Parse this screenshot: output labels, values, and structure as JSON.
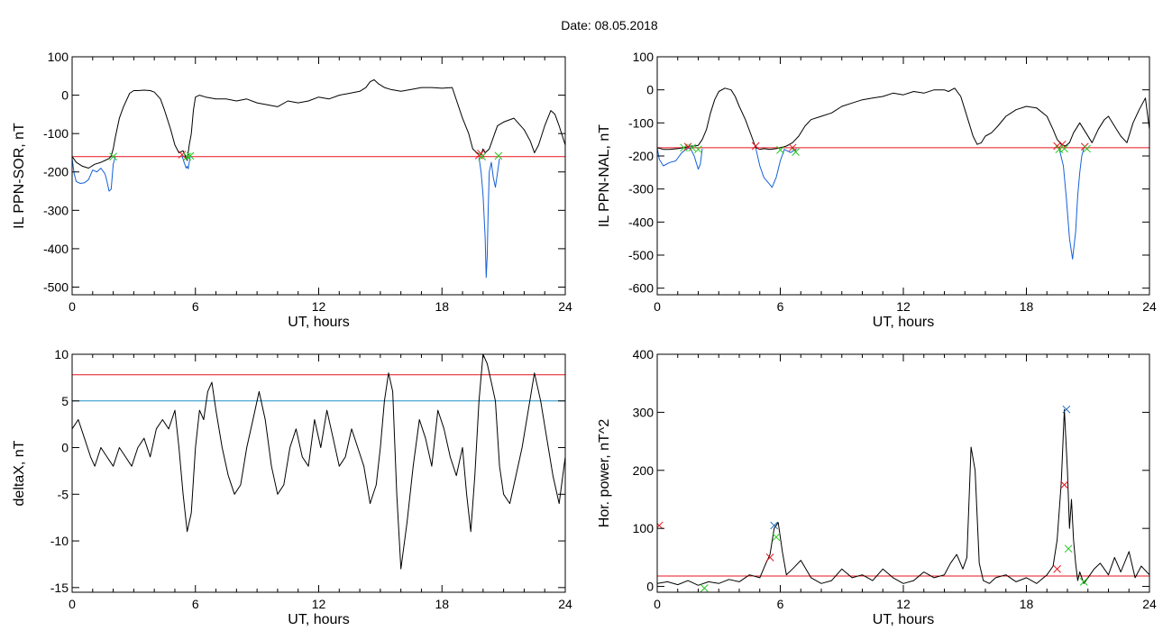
{
  "figure": {
    "date_text": "Date:  08.05.2018"
  },
  "chart_data": [
    {
      "id": "tl",
      "type": "line",
      "xlabel": "UT, hours",
      "ylabel": "IL PPN-SOR, nT",
      "xlim": [
        0,
        24
      ],
      "ylim": [
        -520,
        100
      ],
      "xticks": [
        0,
        6,
        12,
        18,
        24
      ],
      "yticks": [
        100,
        0,
        -100,
        -200,
        -300,
        -400,
        -500
      ],
      "hlines": [
        {
          "y": -160,
          "color": "#e8141e"
        }
      ],
      "series": [
        {
          "color": "#000000",
          "x": [
            0,
            0.2,
            0.5,
            0.8,
            1.1,
            1.4,
            1.6,
            1.8,
            1.9,
            2.0,
            2.1,
            2.3,
            2.5,
            2.8,
            3.0,
            3.2,
            3.5,
            3.8,
            4.0,
            4.3,
            4.5,
            4.8,
            5.0,
            5.2,
            5.4,
            5.6,
            5.7,
            5.8,
            5.9,
            6.0,
            6.2,
            6.5,
            7.0,
            7.5,
            8.0,
            8.5,
            9.0,
            9.5,
            10.0,
            10.5,
            11.0,
            11.5,
            12.0,
            12.5,
            13.0,
            13.5,
            14.0,
            14.3,
            14.5,
            14.7,
            14.9,
            15.2,
            15.5,
            16.0,
            16.5,
            17.0,
            17.5,
            18.0,
            18.5,
            19.0,
            19.3,
            19.5,
            19.7,
            19.9,
            20.0,
            20.1,
            20.3,
            20.5,
            20.7,
            21.0,
            21.5,
            22.0,
            22.3,
            22.5,
            22.7,
            23.0,
            23.3,
            23.5,
            23.7,
            24.0
          ],
          "y": [
            -160,
            -175,
            -185,
            -190,
            -180,
            -175,
            -170,
            -165,
            -158,
            -140,
            -110,
            -60,
            -30,
            5,
            12,
            12,
            13,
            12,
            8,
            -10,
            -40,
            -90,
            -130,
            -150,
            -145,
            -170,
            -130,
            -100,
            -40,
            -5,
            0,
            -5,
            -10,
            -10,
            -15,
            -10,
            -20,
            -25,
            -30,
            -15,
            -20,
            -15,
            -5,
            -10,
            0,
            5,
            10,
            20,
            35,
            40,
            30,
            20,
            15,
            10,
            15,
            20,
            20,
            18,
            20,
            -60,
            -100,
            -140,
            -150,
            -155,
            -140,
            -150,
            -140,
            -110,
            -80,
            -70,
            -60,
            -90,
            -120,
            -150,
            -130,
            -80,
            -40,
            -50,
            -80,
            -130
          ]
        },
        {
          "color": "#1560d8",
          "x": [
            0,
            0.1,
            0.2,
            0.4,
            0.6,
            0.8,
            1.0,
            1.2,
            1.4,
            1.6,
            1.7,
            1.8,
            1.9,
            2.0,
            2.1
          ],
          "y": [
            -165,
            -205,
            -225,
            -230,
            -228,
            -220,
            -195,
            -200,
            -190,
            -205,
            -225,
            -250,
            -245,
            -180,
            -160
          ]
        },
        {
          "color": "#1560d8",
          "x": [
            5.35,
            5.45,
            5.55,
            5.6,
            5.65,
            5.7,
            5.75
          ],
          "y": [
            -158,
            -175,
            -190,
            -185,
            -192,
            -175,
            -158
          ]
        },
        {
          "color": "#1560d8",
          "x": [
            19.8,
            19.9,
            20.0,
            20.1,
            20.15,
            20.2,
            20.25,
            20.3,
            20.4,
            20.5,
            20.6,
            20.8
          ],
          "y": [
            -162,
            -200,
            -260,
            -370,
            -475,
            -420,
            -300,
            -200,
            -175,
            -215,
            -240,
            -165
          ]
        }
      ],
      "markers": [
        {
          "x": 2.0,
          "y": -160,
          "color": "#22c820"
        },
        {
          "x": 5.35,
          "y": -155,
          "color": "#e8141e"
        },
        {
          "x": 5.6,
          "y": -160,
          "color": "#22c820"
        },
        {
          "x": 5.75,
          "y": -158,
          "color": "#22c820"
        },
        {
          "x": 19.8,
          "y": -157,
          "color": "#e8141e"
        },
        {
          "x": 19.9,
          "y": -152,
          "color": "#e8141e"
        },
        {
          "x": 19.95,
          "y": -160,
          "color": "#22c820"
        },
        {
          "x": 20.75,
          "y": -158,
          "color": "#22c820"
        }
      ]
    },
    {
      "id": "tr",
      "type": "line",
      "xlabel": "UT, hours",
      "ylabel": "IL PPN-NAL, nT",
      "xlim": [
        0,
        24
      ],
      "ylim": [
        -620,
        100
      ],
      "xticks": [
        0,
        6,
        12,
        18,
        24
      ],
      "yticks": [
        100,
        0,
        -100,
        -200,
        -300,
        -400,
        -500,
        -600
      ],
      "hlines": [
        {
          "y": -175,
          "color": "#e8141e"
        }
      ],
      "series": [
        {
          "color": "#000000",
          "x": [
            0,
            0.3,
            0.6,
            1.0,
            1.3,
            1.6,
            1.8,
            2.0,
            2.2,
            2.4,
            2.6,
            2.8,
            3.0,
            3.3,
            3.6,
            3.8,
            4.0,
            4.3,
            4.6,
            4.8,
            5.0,
            5.2,
            5.5,
            5.8,
            6.0,
            6.3,
            6.6,
            6.9,
            7.2,
            7.5,
            8.0,
            8.5,
            9.0,
            9.5,
            10.0,
            10.5,
            11.0,
            11.5,
            12.0,
            12.5,
            13.0,
            13.5,
            14.0,
            14.2,
            14.5,
            14.8,
            15.0,
            15.2,
            15.4,
            15.6,
            15.8,
            16.0,
            16.3,
            16.6,
            17.0,
            17.5,
            18.0,
            18.5,
            19.0,
            19.3,
            19.5,
            19.7,
            19.9,
            20.1,
            20.3,
            20.6,
            20.9,
            21.2,
            21.5,
            21.8,
            22.0,
            22.3,
            22.6,
            22.9,
            23.2,
            23.5,
            23.8,
            24.0
          ],
          "y": [
            -175,
            -180,
            -180,
            -178,
            -175,
            -170,
            -170,
            -168,
            -150,
            -120,
            -70,
            -30,
            -5,
            5,
            0,
            -20,
            -50,
            -90,
            -140,
            -175,
            -180,
            -178,
            -180,
            -178,
            -175,
            -170,
            -160,
            -140,
            -110,
            -90,
            -80,
            -70,
            -50,
            -40,
            -30,
            -25,
            -20,
            -10,
            -15,
            -5,
            -10,
            0,
            0,
            -5,
            5,
            -20,
            -60,
            -100,
            -140,
            -165,
            -160,
            -140,
            -130,
            -110,
            -80,
            -60,
            -50,
            -55,
            -80,
            -120,
            -150,
            -165,
            -170,
            -160,
            -130,
            -100,
            -130,
            -160,
            -120,
            -90,
            -80,
            -110,
            -140,
            -160,
            -100,
            -60,
            -25,
            -120
          ]
        },
        {
          "color": "#1560d8",
          "x": [
            0,
            0.1,
            0.3,
            0.6,
            0.9,
            1.2,
            1.4,
            1.6,
            1.8,
            2.0,
            2.1,
            2.2
          ],
          "y": [
            -175,
            -210,
            -230,
            -220,
            -215,
            -190,
            -180,
            -175,
            -200,
            -240,
            -225,
            -178
          ]
        },
        {
          "color": "#1560d8",
          "x": [
            4.8,
            5.0,
            5.2,
            5.4,
            5.6,
            5.8,
            6.0,
            6.2,
            6.5,
            6.8
          ],
          "y": [
            -175,
            -230,
            -265,
            -280,
            -295,
            -265,
            -215,
            -180,
            -190,
            -178
          ]
        },
        {
          "color": "#1560d8",
          "x": [
            19.6,
            19.8,
            19.95,
            20.1,
            20.25,
            20.4,
            20.5,
            20.6,
            20.7,
            20.8
          ],
          "y": [
            -178,
            -230,
            -330,
            -450,
            -512,
            -430,
            -320,
            -250,
            -200,
            -178
          ]
        }
      ],
      "markers": [
        {
          "x": 1.3,
          "y": -175,
          "color": "#22c820"
        },
        {
          "x": 1.5,
          "y": -172,
          "color": "#e8141e"
        },
        {
          "x": 1.7,
          "y": -175,
          "color": "#22c820"
        },
        {
          "x": 2.0,
          "y": -180,
          "color": "#22c820"
        },
        {
          "x": 4.8,
          "y": -170,
          "color": "#e8141e"
        },
        {
          "x": 6.0,
          "y": -182,
          "color": "#22c820"
        },
        {
          "x": 6.6,
          "y": -175,
          "color": "#e8141e"
        },
        {
          "x": 6.75,
          "y": -188,
          "color": "#22c820"
        },
        {
          "x": 19.5,
          "y": -170,
          "color": "#e8141e"
        },
        {
          "x": 19.6,
          "y": -180,
          "color": "#22c820"
        },
        {
          "x": 19.75,
          "y": -165,
          "color": "#e8141e"
        },
        {
          "x": 19.85,
          "y": -178,
          "color": "#22c820"
        },
        {
          "x": 20.85,
          "y": -172,
          "color": "#e8141e"
        },
        {
          "x": 20.95,
          "y": -178,
          "color": "#22c820"
        }
      ]
    },
    {
      "id": "bl",
      "type": "line",
      "xlabel": "UT, hours",
      "ylabel": "deltaX, nT",
      "xlim": [
        0,
        24
      ],
      "ylim": [
        -15.5,
        10
      ],
      "xticks": [
        0,
        6,
        12,
        18,
        24
      ],
      "yticks": [
        10,
        5,
        0,
        -5,
        -10,
        -15
      ],
      "hlines": [
        {
          "y": 7.8,
          "color": "#e8141e"
        },
        {
          "y": 5.0,
          "color": "#1a90c8"
        }
      ],
      "series": [
        {
          "color": "#000000",
          "x": [
            0,
            0.3,
            0.6,
            0.9,
            1.1,
            1.4,
            1.7,
            2.0,
            2.3,
            2.6,
            2.9,
            3.2,
            3.5,
            3.8,
            4.1,
            4.4,
            4.7,
            5.0,
            5.2,
            5.4,
            5.6,
            5.8,
            6.0,
            6.2,
            6.4,
            6.6,
            6.8,
            7.0,
            7.3,
            7.6,
            7.9,
            8.2,
            8.5,
            8.8,
            9.1,
            9.4,
            9.7,
            10.0,
            10.3,
            10.6,
            10.9,
            11.2,
            11.5,
            11.8,
            12.1,
            12.4,
            12.7,
            13.0,
            13.3,
            13.6,
            13.9,
            14.2,
            14.5,
            14.8,
            15.0,
            15.2,
            15.4,
            15.6,
            15.8,
            16.0,
            16.3,
            16.6,
            16.9,
            17.2,
            17.5,
            17.8,
            18.1,
            18.4,
            18.7,
            19.0,
            19.2,
            19.4,
            19.6,
            19.8,
            20.0,
            20.2,
            20.4,
            20.6,
            20.8,
            21.0,
            21.3,
            21.6,
            21.9,
            22.2,
            22.5,
            22.8,
            23.1,
            23.4,
            23.7,
            24.0
          ],
          "y": [
            2,
            3,
            1,
            -1,
            -2,
            0,
            -1,
            -2,
            0,
            -1,
            -2,
            0,
            1,
            -1,
            2,
            3,
            2,
            4,
            0,
            -5,
            -9,
            -7,
            0,
            4,
            3,
            6,
            7,
            4,
            0,
            -3,
            -5,
            -4,
            0,
            3,
            6,
            3,
            -2,
            -5,
            -4,
            0,
            2,
            -1,
            -2,
            3,
            0,
            4,
            1,
            -2,
            -1,
            2,
            0,
            -2,
            -6,
            -4,
            0,
            5,
            8,
            6,
            -5,
            -13,
            -8,
            -2,
            3,
            1,
            -2,
            4,
            2,
            -1,
            -3,
            0,
            -5,
            -9,
            -3,
            5,
            10,
            9,
            7,
            5,
            -2,
            -5,
            -6,
            -3,
            0,
            4,
            8,
            5,
            1,
            -3,
            -6,
            -1
          ]
        }
      ],
      "markers": []
    },
    {
      "id": "br",
      "type": "line",
      "xlabel": "UT, hours",
      "ylabel": "Hor. power, nT^2",
      "xlim": [
        0,
        24
      ],
      "ylim": [
        -10,
        400
      ],
      "xticks": [
        0,
        6,
        12,
        18,
        24
      ],
      "yticks": [
        400,
        300,
        200,
        100,
        0
      ],
      "hlines": [
        {
          "y": 18,
          "color": "#e8141e"
        }
      ],
      "series": [
        {
          "color": "#000000",
          "x": [
            0,
            0.5,
            1.0,
            1.5,
            2.0,
            2.5,
            3.0,
            3.5,
            4.0,
            4.5,
            5.0,
            5.3,
            5.5,
            5.7,
            5.9,
            6.1,
            6.3,
            6.6,
            7.0,
            7.5,
            8.0,
            8.5,
            9.0,
            9.5,
            10.0,
            10.5,
            11.0,
            11.5,
            12.0,
            12.5,
            13.0,
            13.5,
            14.0,
            14.3,
            14.6,
            14.9,
            15.1,
            15.3,
            15.5,
            15.7,
            15.9,
            16.2,
            16.5,
            17.0,
            17.5,
            18.0,
            18.5,
            19.0,
            19.3,
            19.5,
            19.7,
            19.85,
            20.0,
            20.1,
            20.2,
            20.3,
            20.4,
            20.5,
            20.6,
            20.8,
            21.0,
            21.3,
            21.6,
            22.0,
            22.3,
            22.6,
            23.0,
            23.3,
            23.6,
            24.0
          ],
          "y": [
            5,
            8,
            3,
            10,
            2,
            8,
            5,
            12,
            8,
            20,
            15,
            40,
            55,
            100,
            110,
            60,
            20,
            30,
            45,
            15,
            5,
            10,
            30,
            15,
            20,
            10,
            30,
            15,
            5,
            10,
            25,
            15,
            20,
            40,
            55,
            30,
            50,
            240,
            200,
            40,
            10,
            5,
            15,
            20,
            8,
            15,
            5,
            20,
            35,
            80,
            180,
            305,
            200,
            100,
            150,
            80,
            40,
            10,
            25,
            5,
            15,
            30,
            40,
            20,
            50,
            25,
            60,
            15,
            35,
            20
          ]
        }
      ],
      "markers": [
        {
          "x": 0.1,
          "y": 105,
          "color": "#e8141e"
        },
        {
          "x": 2.3,
          "y": -3,
          "color": "#22c820"
        },
        {
          "x": 5.5,
          "y": 50,
          "color": "#e8141e"
        },
        {
          "x": 5.7,
          "y": 105,
          "color": "#1a6abc"
        },
        {
          "x": 5.8,
          "y": 85,
          "color": "#22c820"
        },
        {
          "x": 19.5,
          "y": 30,
          "color": "#e8141e"
        },
        {
          "x": 19.85,
          "y": 175,
          "color": "#e8141e"
        },
        {
          "x": 19.95,
          "y": 305,
          "color": "#1a6abc"
        },
        {
          "x": 20.05,
          "y": 65,
          "color": "#22c820"
        },
        {
          "x": 20.8,
          "y": 8,
          "color": "#22c820"
        }
      ]
    }
  ]
}
